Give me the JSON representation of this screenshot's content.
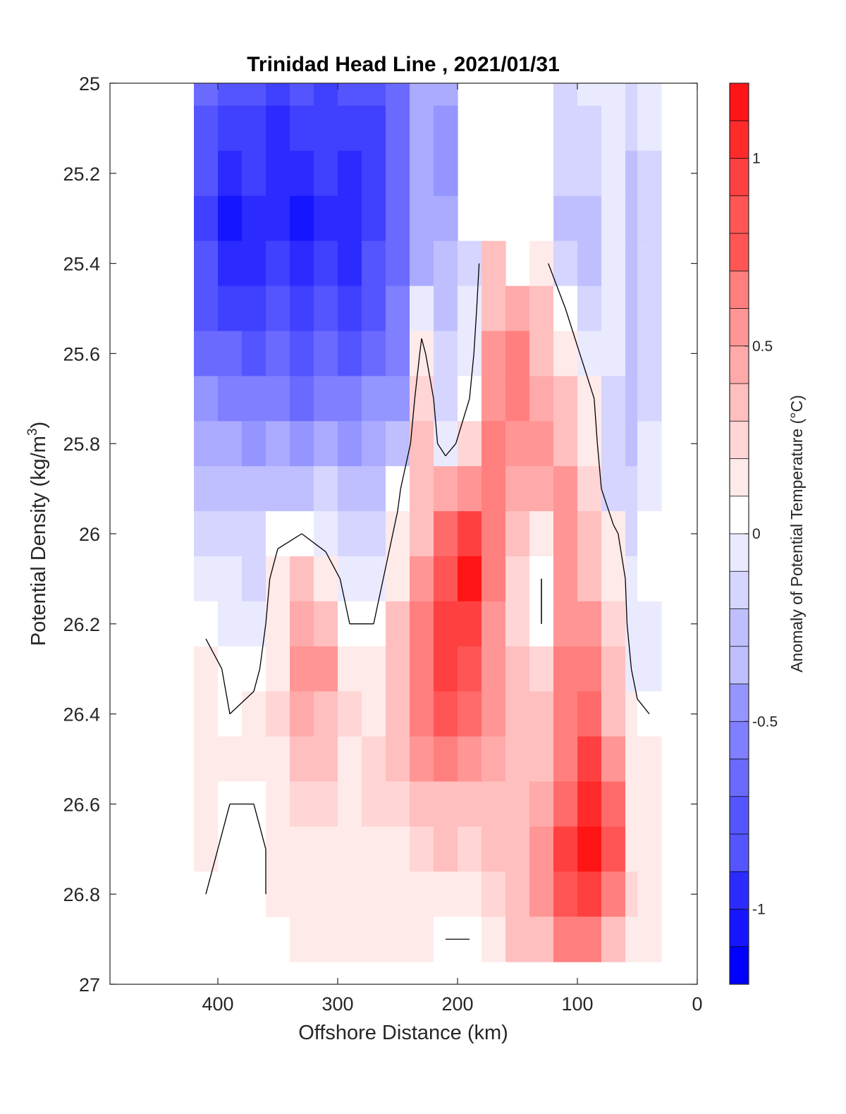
{
  "chart_data": {
    "type": "heatmap",
    "title": "Trinidad Head Line , 2021/01/31",
    "xlabel": "Offshore Distance (km)",
    "ylabel": "Potential Density (kg/m",
    "ylabel_sup": "3",
    "ylabel_close": ")",
    "colorbar_label": "Anomaly of Potential Temperature (°C)",
    "xlim": [
      490,
      0
    ],
    "ylim": [
      25,
      27
    ],
    "x_ticks": [
      400,
      300,
      200,
      100,
      0
    ],
    "y_ticks": [
      25,
      25.2,
      25.4,
      25.6,
      25.8,
      26,
      26.2,
      26.4,
      26.6,
      26.8,
      27
    ],
    "colorbar": {
      "range": [
        -1.2,
        1.2
      ],
      "step": 0.1,
      "ticks": [
        1,
        0.5,
        0,
        -0.5,
        -1
      ],
      "tick_labels": [
        "1",
        "0.5",
        "0",
        "-0.5",
        "-1"
      ],
      "low_color": "#0000ff",
      "mid_color": "#ffffff",
      "high_color": "#ff0000"
    },
    "x_distance_km": [
      410,
      390,
      370,
      350,
      330,
      310,
      290,
      270,
      250,
      230,
      210,
      190,
      170,
      150,
      130,
      110,
      90,
      70,
      50,
      40
    ],
    "y_density": [
      25.0,
      25.1,
      25.2,
      25.3,
      25.4,
      25.5,
      25.6,
      25.7,
      25.8,
      25.9,
      26.0,
      26.1,
      26.2,
      26.3,
      26.4,
      26.5,
      26.6,
      26.7,
      26.8,
      26.9
    ],
    "anomaly_degC": [
      [
        -0.7,
        -0.8,
        -0.8,
        -0.9,
        -0.8,
        -0.9,
        -0.85,
        -0.85,
        -0.7,
        -0.4,
        -0.4,
        null,
        null,
        null,
        null,
        -0.2,
        -0.15,
        -0.1,
        -0.2,
        -0.1
      ],
      [
        -0.8,
        -0.9,
        -0.9,
        -1.0,
        -0.9,
        -0.9,
        -0.95,
        -0.9,
        -0.7,
        -0.45,
        -0.5,
        null,
        null,
        null,
        null,
        -0.2,
        -0.2,
        -0.1,
        -0.25,
        -0.15
      ],
      [
        -0.85,
        -1.0,
        -0.95,
        -1.0,
        -1.0,
        -0.95,
        -1.0,
        -0.9,
        -0.75,
        -0.45,
        -0.5,
        null,
        null,
        null,
        null,
        -0.25,
        -0.25,
        -0.1,
        -0.3,
        -0.2
      ],
      [
        -0.9,
        -1.1,
        -1.0,
        -1.0,
        -1.1,
        -1.0,
        -1.05,
        -0.9,
        -0.75,
        -0.45,
        -0.45,
        null,
        null,
        null,
        null,
        -0.3,
        -0.35,
        -0.1,
        -0.35,
        -0.2
      ],
      [
        -0.85,
        -1.0,
        -1.0,
        -0.95,
        -1.05,
        -0.95,
        -1.0,
        -0.85,
        -0.7,
        -0.4,
        -0.35,
        -0.2,
        0.3,
        null,
        0.1,
        -0.25,
        -0.35,
        -0.1,
        -0.35,
        -0.2
      ],
      [
        -0.8,
        -0.9,
        -0.9,
        -0.85,
        -0.95,
        -0.85,
        -0.9,
        -0.8,
        -0.65,
        -0.1,
        -0.3,
        -0.15,
        0.35,
        0.4,
        0.3,
        0.0,
        -0.2,
        -0.1,
        -0.35,
        -0.2
      ],
      [
        -0.7,
        -0.75,
        -0.8,
        -0.75,
        -0.85,
        -0.75,
        -0.8,
        -0.7,
        -0.6,
        0.05,
        -0.25,
        -0.1,
        0.45,
        0.55,
        0.35,
        0.15,
        -0.1,
        -0.15,
        -0.3,
        -0.2
      ],
      [
        -0.55,
        -0.6,
        -0.65,
        -0.6,
        -0.7,
        -0.6,
        -0.65,
        -0.55,
        -0.5,
        0.2,
        -0.2,
        0.0,
        0.5,
        0.55,
        0.4,
        0.25,
        0.05,
        -0.2,
        -0.3,
        -0.2
      ],
      [
        -0.4,
        -0.45,
        -0.5,
        -0.45,
        -0.55,
        -0.45,
        -0.5,
        -0.4,
        -0.35,
        0.3,
        -0.15,
        0.2,
        0.55,
        0.5,
        0.45,
        0.35,
        0.1,
        -0.2,
        -0.3,
        -0.15
      ],
      [
        -0.3,
        -0.3,
        -0.35,
        -0.3,
        -0.3,
        -0.25,
        -0.35,
        -0.3,
        -0.05,
        0.35,
        0.4,
        0.45,
        0.6,
        0.4,
        0.4,
        0.45,
        0.2,
        -0.2,
        -0.25,
        -0.1
      ],
      [
        -0.25,
        -0.2,
        -0.25,
        -0.05,
        0.0,
        -0.1,
        -0.2,
        -0.2,
        0.05,
        0.35,
        0.7,
        0.9,
        0.6,
        0.25,
        0.1,
        0.45,
        0.3,
        0.05,
        -0.2,
        -0.05
      ],
      [
        -0.15,
        -0.15,
        -0.2,
        0.1,
        0.25,
        0.15,
        -0.1,
        -0.1,
        0.15,
        0.45,
        0.8,
        1.05,
        0.55,
        0.2,
        0.0,
        0.45,
        0.35,
        0.15,
        -0.15,
        -0.05
      ],
      [
        -0.05,
        -0.1,
        -0.15,
        0.15,
        0.4,
        0.35,
        0.0,
        0.0,
        0.25,
        0.55,
        0.85,
        0.95,
        0.5,
        0.2,
        0.0,
        0.5,
        0.45,
        0.2,
        -0.15,
        -0.1
      ],
      [
        0.1,
        -0.05,
        -0.05,
        0.15,
        0.5,
        0.45,
        0.15,
        0.05,
        0.3,
        0.6,
        0.85,
        0.8,
        0.5,
        0.25,
        0.2,
        0.55,
        0.55,
        0.3,
        -0.1,
        -0.1
      ],
      [
        0.15,
        0.0,
        0.05,
        0.2,
        0.4,
        0.35,
        0.2,
        0.15,
        0.3,
        0.55,
        0.75,
        0.65,
        0.45,
        0.3,
        0.3,
        0.6,
        0.7,
        0.35,
        0.05,
        0.0
      ],
      [
        0.15,
        0.05,
        0.05,
        0.15,
        0.3,
        0.25,
        0.15,
        0.2,
        0.25,
        0.45,
        0.55,
        0.5,
        0.4,
        0.35,
        0.35,
        0.6,
        0.85,
        0.5,
        0.1,
        0.15
      ],
      [
        0.1,
        0.0,
        0.0,
        0.1,
        0.2,
        0.2,
        0.15,
        0.2,
        0.2,
        0.3,
        0.35,
        0.35,
        0.35,
        0.3,
        0.4,
        0.7,
        1.0,
        0.7,
        0.15,
        0.15
      ],
      [
        0.05,
        -0.05,
        -0.05,
        0.05,
        0.15,
        0.15,
        0.15,
        0.1,
        0.15,
        0.2,
        0.25,
        0.2,
        0.25,
        0.3,
        0.45,
        0.85,
        1.1,
        0.75,
        0.15,
        0.1
      ],
      [
        0.0,
        -0.05,
        -0.05,
        0.05,
        0.15,
        0.15,
        0.1,
        0.1,
        0.15,
        0.1,
        0.05,
        0.15,
        0.2,
        0.3,
        0.45,
        0.8,
        0.9,
        0.55,
        0.2,
        0.1
      ],
      [
        null,
        null,
        null,
        null,
        0.1,
        0.1,
        0.1,
        0.1,
        0.1,
        0.05,
        0.0,
        0.0,
        0.15,
        0.25,
        0.35,
        0.55,
        0.55,
        0.35,
        0.15,
        0.1
      ]
    ]
  }
}
